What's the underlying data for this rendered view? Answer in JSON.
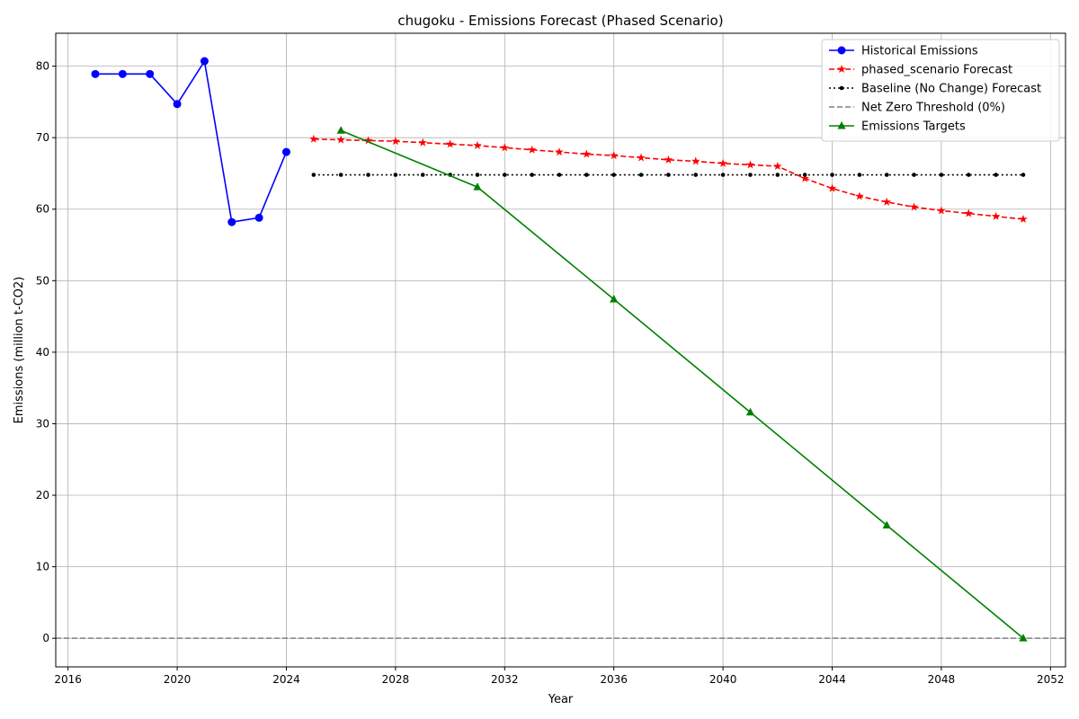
{
  "chart_data": {
    "type": "line",
    "title": "chugoku - Emissions Forecast (Phased Scenario)",
    "xlabel": "Year",
    "ylabel": "Emissions (million t-CO2)",
    "xlim": [
      2015.55,
      2052.55
    ],
    "ylim": [
      -4.0,
      84.6
    ],
    "xticks": [
      2016,
      2020,
      2024,
      2028,
      2032,
      2036,
      2040,
      2044,
      2048,
      2052
    ],
    "yticks": [
      0,
      10,
      20,
      30,
      40,
      50,
      60,
      70,
      80
    ],
    "grid": true,
    "legend_position": "top-right",
    "series": [
      {
        "name": "Historical Emissions",
        "color": "#0000ff",
        "linestyle": "solid",
        "marker": "circle",
        "x": [
          2017,
          2018,
          2019,
          2020,
          2021,
          2022,
          2023,
          2024
        ],
        "y": [
          78.9,
          78.9,
          78.9,
          74.7,
          80.7,
          58.2,
          58.8,
          68.0
        ]
      },
      {
        "name": "phased_scenario Forecast",
        "color": "#ff0000",
        "linestyle": "dashed",
        "marker": "star",
        "x": [
          2025,
          2026,
          2027,
          2028,
          2029,
          2030,
          2031,
          2032,
          2033,
          2034,
          2035,
          2036,
          2037,
          2038,
          2039,
          2040,
          2041,
          2042,
          2043,
          2044,
          2045,
          2046,
          2047,
          2048,
          2049,
          2050,
          2051
        ],
        "y": [
          69.8,
          69.7,
          69.6,
          69.5,
          69.3,
          69.1,
          68.9,
          68.6,
          68.3,
          68.0,
          67.7,
          67.5,
          67.2,
          66.9,
          66.7,
          66.4,
          66.2,
          66.0,
          64.3,
          62.9,
          61.8,
          61.0,
          60.3,
          59.8,
          59.4,
          59.0,
          58.6
        ]
      },
      {
        "name": "Baseline (No Change) Forecast",
        "color": "#000000",
        "linestyle": "dotted",
        "marker": "dot",
        "x": [
          2025,
          2026,
          2027,
          2028,
          2029,
          2030,
          2031,
          2032,
          2033,
          2034,
          2035,
          2036,
          2037,
          2038,
          2039,
          2040,
          2041,
          2042,
          2043,
          2044,
          2045,
          2046,
          2047,
          2048,
          2049,
          2050,
          2051
        ],
        "y": [
          64.8,
          64.8,
          64.8,
          64.8,
          64.8,
          64.8,
          64.8,
          64.8,
          64.8,
          64.8,
          64.8,
          64.8,
          64.8,
          64.8,
          64.8,
          64.8,
          64.8,
          64.8,
          64.8,
          64.8,
          64.8,
          64.8,
          64.8,
          64.8,
          64.8,
          64.8,
          64.8
        ]
      },
      {
        "name": "Net Zero Threshold (0%)",
        "color": "#808080",
        "linestyle": "dashed",
        "marker": "none",
        "horizontal_line": 0
      },
      {
        "name": "Emissions Targets",
        "color": "#008000",
        "linestyle": "solid",
        "marker": "triangle",
        "x": [
          2026,
          2031,
          2036,
          2041,
          2046,
          2051
        ],
        "y": [
          71.0,
          63.1,
          47.4,
          31.6,
          15.8,
          0.0
        ]
      }
    ]
  }
}
